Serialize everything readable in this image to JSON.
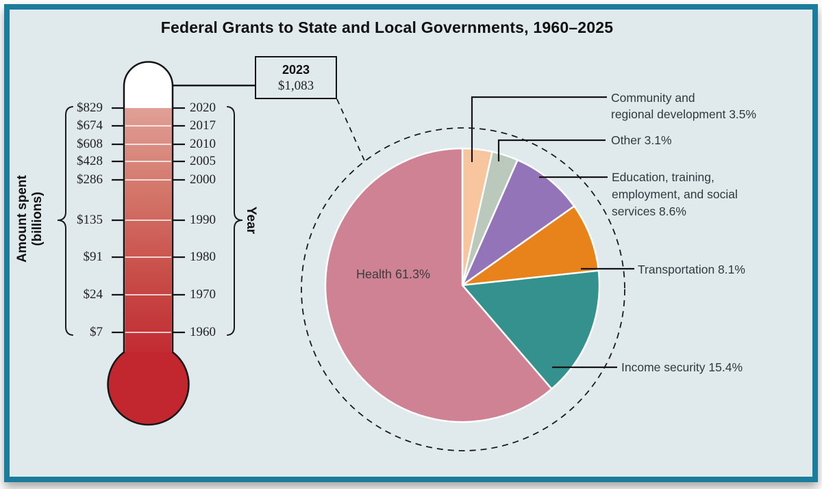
{
  "title": "Federal Grants to State and Local Governments, 1960–2025",
  "colors": {
    "frame_border": "#1c7c9b",
    "background": "#e0e9ec",
    "outline": "#141414",
    "thermo_fill_top": "#e0a096",
    "thermo_fill_bottom": "#c22a32",
    "bulb": "#c2262f"
  },
  "chart_data": [
    {
      "type": "thermometer",
      "unit": "billions of dollars",
      "axis_left_label": "Amount spent (billions)",
      "axis_right_label": "Year",
      "callout": {
        "year": 2023,
        "amount": 1083,
        "year_label": "2023",
        "amount_label": "$1,083"
      },
      "points": [
        {
          "year": 2020,
          "amount": 829,
          "amount_label": "$829",
          "year_label": "2020"
        },
        {
          "year": 2017,
          "amount": 674,
          "amount_label": "$674",
          "year_label": "2017"
        },
        {
          "year": 2010,
          "amount": 608,
          "amount_label": "$608",
          "year_label": "2010"
        },
        {
          "year": 2005,
          "amount": 428,
          "amount_label": "$428",
          "year_label": "2005"
        },
        {
          "year": 2000,
          "amount": 286,
          "amount_label": "$286",
          "year_label": "2000"
        },
        {
          "year": 1990,
          "amount": 135,
          "amount_label": "$135",
          "year_label": "1990"
        },
        {
          "year": 1980,
          "amount": 91,
          "amount_label": "$91",
          "year_label": "1980"
        },
        {
          "year": 1970,
          "amount": 24,
          "amount_label": "$24",
          "year_label": "1970"
        },
        {
          "year": 1960,
          "amount": 7,
          "amount_label": "$7",
          "year_label": "1960"
        }
      ]
    },
    {
      "type": "pie",
      "legend_position": "right",
      "slices": [
        {
          "id": "community",
          "name": "Community and regional development",
          "value": 3.5,
          "color": "#f8c69e"
        },
        {
          "id": "other",
          "name": "Other",
          "value": 3.1,
          "color": "#bac9bc"
        },
        {
          "id": "education",
          "name": "Education, training, employment, and social services",
          "value": 8.6,
          "color": "#9474b8"
        },
        {
          "id": "transportation",
          "name": "Transportation",
          "value": 8.1,
          "color": "#e8831c"
        },
        {
          "id": "income",
          "name": "Income security",
          "value": 15.4,
          "color": "#34918d"
        },
        {
          "id": "health",
          "name": "Health",
          "value": 61.3,
          "color": "#d08295"
        }
      ]
    }
  ],
  "pie_labels": {
    "community": {
      "lines": [
        "Community and",
        "regional development 3.5%"
      ]
    },
    "other": {
      "lines": [
        "Other 3.1%"
      ]
    },
    "education": {
      "lines": [
        "Education, training,",
        "employment, and social",
        "services 8.6%"
      ]
    },
    "transportation": {
      "lines": [
        "Transportation 8.1%"
      ]
    },
    "income": {
      "lines": [
        "Income security 15.4%"
      ]
    },
    "health": {
      "lines": [
        "Health 61.3%"
      ]
    }
  }
}
